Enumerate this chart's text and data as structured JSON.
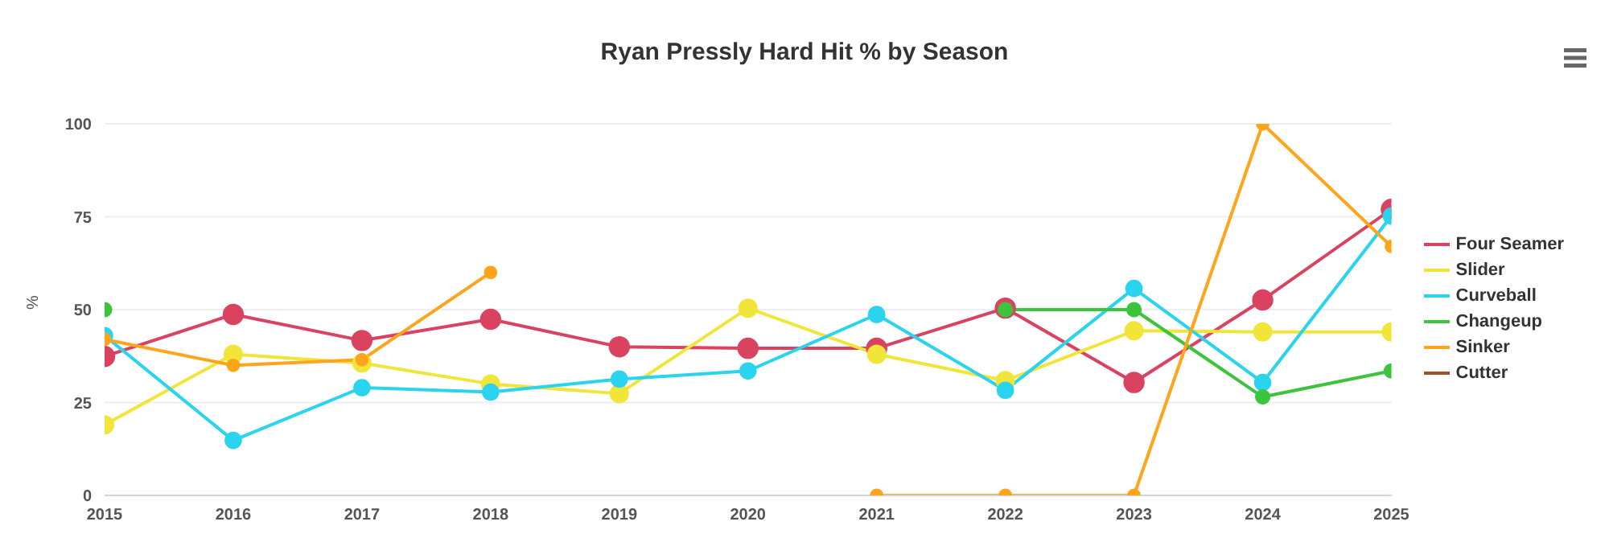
{
  "chart_data": {
    "type": "line",
    "title": "Ryan Pressly Hard Hit % by Season",
    "ylabel": "%",
    "x": [
      2015,
      2016,
      2017,
      2018,
      2019,
      2020,
      2021,
      2022,
      2023,
      2024,
      2025
    ],
    "xlim": [
      2015,
      2025
    ],
    "xticks": [
      2015,
      2016,
      2017,
      2018,
      2019,
      2020,
      2021,
      2022,
      2023,
      2024,
      2025
    ],
    "ylim": [
      0,
      100
    ],
    "yticks": [
      0,
      25,
      50,
      75,
      100
    ],
    "grid": "y",
    "legend": "right",
    "marker": "circle",
    "line_style": "solid",
    "series": [
      {
        "name": "Four Seamer",
        "color": "#d9435f",
        "values": [
          37.4,
          48.7,
          41.7,
          47.4,
          40,
          39.6,
          39.6,
          50.4,
          30.4,
          52.6,
          77
        ]
      },
      {
        "name": "Slider",
        "color": "#f2e53a",
        "values": [
          19,
          38,
          35.6,
          30,
          27.4,
          50.4,
          38,
          30.9,
          44.3,
          44,
          44
        ]
      },
      {
        "name": "Curveball",
        "color": "#2ad4ee",
        "values": [
          43,
          14.8,
          29,
          27.8,
          31.3,
          33.5,
          48.7,
          28.3,
          55.7,
          30.4,
          75.2
        ]
      },
      {
        "name": "Changeup",
        "color": "#3cc43c",
        "values": [
          50,
          null,
          null,
          null,
          null,
          null,
          null,
          50,
          50,
          26.5,
          33.5
        ]
      },
      {
        "name": "Sinker",
        "color": "#ffa41b",
        "values": [
          42,
          35,
          36.5,
          60,
          null,
          null,
          0,
          0,
          0,
          100,
          67
        ]
      },
      {
        "name": "Cutter",
        "color": "#a0522d",
        "values": [
          null,
          null,
          null,
          null,
          null,
          null,
          null,
          null,
          null,
          null,
          null
        ]
      }
    ]
  }
}
